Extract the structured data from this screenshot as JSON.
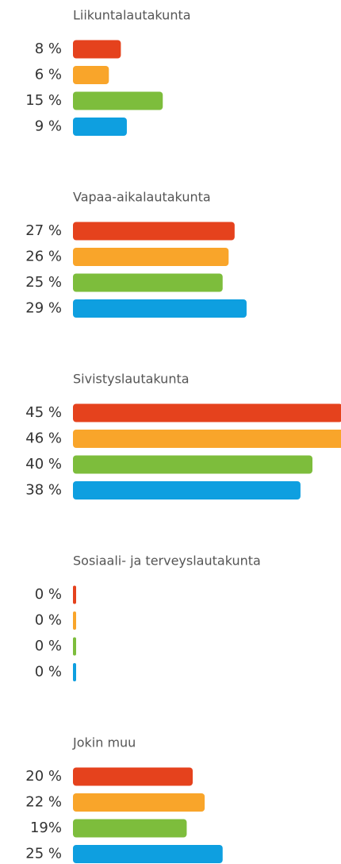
{
  "chart_data": {
    "type": "bar",
    "categories": [
      "Liikuntalautakunta",
      "Vapaa-aikalautakunta",
      "Sivistyslautakunta",
      "Sosiaali- ja terveyslautakunta",
      "Jokin muu"
    ],
    "series": [
      {
        "color": "#e5421d",
        "values": [
          8,
          27,
          45,
          0,
          20
        ],
        "value_labels": [
          "8 %",
          "27 %",
          "45 %",
          "0 %",
          "20 %"
        ]
      },
      {
        "color": "#f9a52a",
        "values": [
          6,
          26,
          46,
          0,
          22
        ],
        "value_labels": [
          "6 %",
          "26 %",
          "46 %",
          "0 %",
          "22 %"
        ]
      },
      {
        "color": "#7dbd3c",
        "values": [
          15,
          25,
          40,
          0,
          19
        ],
        "value_labels": [
          "15 %",
          "25 %",
          "40 %",
          "0 %",
          "19%"
        ]
      },
      {
        "color": "#0e9fe0",
        "values": [
          9,
          29,
          38,
          0,
          25
        ],
        "value_labels": [
          "9 %",
          "29 %",
          "38 %",
          "0 %",
          "25 %"
        ]
      }
    ]
  }
}
